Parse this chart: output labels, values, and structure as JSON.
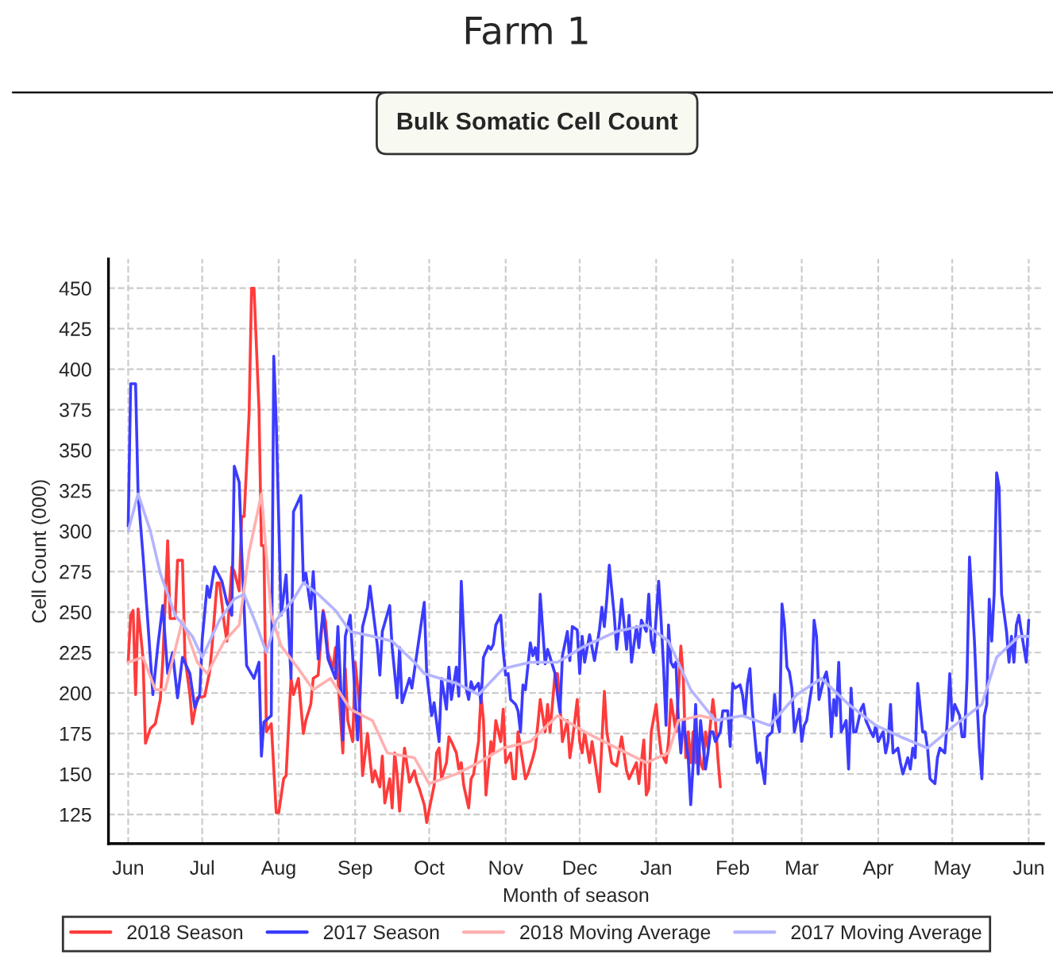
{
  "chart_data": {
    "type": "line",
    "title": "Farm 1",
    "subtitle": "Bulk Somatic Cell Count",
    "xlabel": "Month of season",
    "ylabel": "Cell Count (000)",
    "xlim": [
      "2017-05-24",
      "2018-06-07"
    ],
    "ylim": [
      107,
      468
    ],
    "xticks": [
      {
        "value": "2017-06-01",
        "label": "Jun"
      },
      {
        "value": "2017-07-01",
        "label": "Jul"
      },
      {
        "value": "2017-08-01",
        "label": "Aug"
      },
      {
        "value": "2017-09-01",
        "label": "Sep"
      },
      {
        "value": "2017-10-01",
        "label": "Oct"
      },
      {
        "value": "2017-11-01",
        "label": "Nov"
      },
      {
        "value": "2017-12-01",
        "label": "Dec"
      },
      {
        "value": "2018-01-01",
        "label": "Jan"
      },
      {
        "value": "2018-02-01",
        "label": "Feb"
      },
      {
        "value": "2018-03-01",
        "label": "Mar"
      },
      {
        "value": "2018-04-01",
        "label": "Apr"
      },
      {
        "value": "2018-05-01",
        "label": "May"
      },
      {
        "value": "2018-06-01",
        "label": "Jun"
      }
    ],
    "yticks": [
      125,
      150,
      175,
      200,
      225,
      250,
      275,
      300,
      325,
      350,
      375,
      400,
      425,
      450
    ],
    "grid": true,
    "legend": "bottom",
    "line_style": "solid",
    "series": [
      {
        "name": "2018 Season",
        "color": "#ff3b3b",
        "x": [
          "2017-06-01",
          "2017-06-02",
          "2017-06-03",
          "2017-06-04",
          "2017-06-05",
          "2017-06-07",
          "2017-06-08",
          "2017-06-10",
          "2017-06-12",
          "2017-06-14",
          "2017-06-15",
          "2017-06-17",
          "2017-06-18",
          "2017-06-20",
          "2017-06-21",
          "2017-06-23",
          "2017-06-24",
          "2017-06-26",
          "2017-06-27",
          "2017-06-29",
          "2017-07-02",
          "2017-07-04",
          "2017-07-05",
          "2017-07-07",
          "2017-07-08",
          "2017-07-10",
          "2017-07-11",
          "2017-07-13",
          "2017-07-14",
          "2017-07-16",
          "2017-07-17",
          "2017-07-18",
          "2017-07-20",
          "2017-07-21",
          "2017-07-22",
          "2017-07-24",
          "2017-07-25",
          "2017-07-26",
          "2017-07-27",
          "2017-07-29",
          "2017-07-31",
          "2017-08-01",
          "2017-08-03",
          "2017-08-04",
          "2017-08-06",
          "2017-08-07",
          "2017-08-09",
          "2017-08-11",
          "2017-08-12",
          "2017-08-14",
          "2017-08-15",
          "2017-08-17",
          "2017-08-19",
          "2017-08-20",
          "2017-08-21",
          "2017-08-23",
          "2017-08-24",
          "2017-08-25",
          "2017-08-27",
          "2017-08-28",
          "2017-08-29",
          "2017-08-31",
          "2017-09-01",
          "2017-09-03",
          "2017-09-04",
          "2017-09-06",
          "2017-09-07",
          "2017-09-08",
          "2017-09-09",
          "2017-09-11",
          "2017-09-12",
          "2017-09-13",
          "2017-09-15",
          "2017-09-16",
          "2017-09-17",
          "2017-09-18",
          "2017-09-19",
          "2017-09-21",
          "2017-09-23",
          "2017-09-25",
          "2017-09-26",
          "2017-09-27",
          "2017-09-29",
          "2017-09-30",
          "2017-10-01",
          "2017-10-03",
          "2017-10-04",
          "2017-10-05",
          "2017-10-06",
          "2017-10-08",
          "2017-10-09",
          "2017-10-10",
          "2017-10-12",
          "2017-10-13",
          "2017-10-14",
          "2017-10-15",
          "2017-10-17",
          "2017-10-18",
          "2017-10-19",
          "2017-10-21",
          "2017-10-22",
          "2017-10-23",
          "2017-10-24",
          "2017-10-26",
          "2017-10-27",
          "2017-10-28",
          "2017-10-30",
          "2017-10-31",
          "2017-11-01",
          "2017-11-03",
          "2017-11-04",
          "2017-11-05",
          "2017-11-06",
          "2017-11-08",
          "2017-11-09",
          "2017-11-10",
          "2017-11-12",
          "2017-11-13",
          "2017-11-14",
          "2017-11-15",
          "2017-11-17",
          "2017-11-18",
          "2017-11-19",
          "2017-11-21",
          "2017-11-22",
          "2017-11-23",
          "2017-11-24",
          "2017-11-26",
          "2017-11-27",
          "2017-11-28",
          "2017-11-30",
          "2017-12-01",
          "2017-12-02",
          "2017-12-03",
          "2017-12-05",
          "2017-12-06",
          "2017-12-07",
          "2017-12-09",
          "2017-12-10",
          "2017-12-11",
          "2017-12-12",
          "2017-12-14",
          "2017-12-16",
          "2017-12-18",
          "2017-12-20",
          "2017-12-21",
          "2017-12-24",
          "2017-12-25",
          "2017-12-27",
          "2017-12-28",
          "2017-12-29",
          "2017-12-30",
          "2018-01-01",
          "2018-01-02",
          "2018-01-03",
          "2018-01-05",
          "2018-01-06",
          "2018-01-07",
          "2018-01-09",
          "2018-01-10",
          "2018-01-11",
          "2018-01-12",
          "2018-01-13",
          "2018-01-14",
          "2018-01-15",
          "2018-01-16",
          "2018-01-17",
          "2018-01-18",
          "2018-01-19",
          "2018-01-20",
          "2018-01-21",
          "2018-01-22",
          "2018-01-24",
          "2018-01-25",
          "2018-01-26",
          "2018-01-27"
        ],
        "values": [
          219,
          248,
          251,
          199,
          252,
          222,
          169,
          178,
          181,
          196,
          219,
          294,
          246,
          246,
          282,
          282,
          222,
          199,
          181,
          197,
          198,
          213,
          229,
          268,
          268,
          242,
          232,
          278,
          275,
          263,
          309,
          309,
          372,
          450,
          450,
          376,
          291,
          291,
          176,
          181,
          126,
          126,
          147,
          149,
          209,
          199,
          209,
          175,
          183,
          193,
          209,
          211,
          251,
          244,
          225,
          215,
          228,
          209,
          163,
          215,
          183,
          170,
          219,
          188,
          149,
          175,
          159,
          145,
          152,
          142,
          161,
          132,
          147,
          129,
          163,
          150,
          127,
          166,
          145,
          152,
          145,
          141,
          131,
          120,
          128,
          143,
          163,
          166,
          147,
          157,
          173,
          170,
          163,
          153,
          157,
          143,
          129,
          147,
          150,
          170,
          199,
          183,
          137,
          170,
          163,
          183,
          170,
          190,
          157,
          163,
          147,
          147,
          176,
          157,
          147,
          150,
          160,
          166,
          180,
          196,
          176,
          193,
          176,
          212,
          212,
          193,
          170,
          183,
          160,
          170,
          196,
          170,
          163,
          176,
          157,
          170,
          160,
          139,
          170,
          201,
          176,
          157,
          155,
          173,
          152,
          147,
          157,
          144,
          171,
          137,
          141,
          176,
          193,
          176,
          163,
          157,
          170,
          196,
          176,
          199,
          229,
          209,
          160,
          176,
          157,
          176,
          157,
          170,
          157,
          153,
          176,
          166,
          196,
          183,
          160,
          142
        ]
      },
      {
        "name": "2017 Season",
        "color": "#3b3bff",
        "x": [
          "2017-06-01",
          "2017-06-02",
          "2017-06-04",
          "2017-06-05",
          "2017-06-07",
          "2017-06-09",
          "2017-06-11",
          "2017-06-13",
          "2017-06-15",
          "2017-06-17",
          "2017-06-19",
          "2017-06-21",
          "2017-06-23",
          "2017-06-26",
          "2017-06-28",
          "2017-06-30",
          "2017-07-01",
          "2017-07-03",
          "2017-07-04",
          "2017-07-06",
          "2017-07-09",
          "2017-07-11",
          "2017-07-13",
          "2017-07-14",
          "2017-07-16",
          "2017-07-17",
          "2017-07-19",
          "2017-07-22",
          "2017-07-24",
          "2017-07-25",
          "2017-07-26",
          "2017-07-29",
          "2017-07-30",
          "2017-07-31",
          "2017-08-02",
          "2017-08-04",
          "2017-08-06",
          "2017-08-07",
          "2017-08-10",
          "2017-08-11",
          "2017-08-12",
          "2017-08-14",
          "2017-08-15",
          "2017-08-17",
          "2017-08-19",
          "2017-08-21",
          "2017-08-24",
          "2017-08-25",
          "2017-08-26",
          "2017-08-27",
          "2017-08-28",
          "2017-08-30",
          "2017-09-02",
          "2017-09-03",
          "2017-09-04",
          "2017-09-06",
          "2017-09-07",
          "2017-09-10",
          "2017-09-11",
          "2017-09-12",
          "2017-09-15",
          "2017-09-16",
          "2017-09-18",
          "2017-09-19",
          "2017-09-20",
          "2017-09-23",
          "2017-09-24",
          "2017-09-29",
          "2017-09-30",
          "2017-10-02",
          "2017-10-03",
          "2017-10-05",
          "2017-10-06",
          "2017-10-08",
          "2017-10-09",
          "2017-10-10",
          "2017-10-12",
          "2017-10-13",
          "2017-10-14",
          "2017-10-16",
          "2017-10-17",
          "2017-10-18",
          "2017-10-19",
          "2017-10-21",
          "2017-10-22",
          "2017-10-23",
          "2017-10-25",
          "2017-10-26",
          "2017-10-27",
          "2017-10-28",
          "2017-10-30",
          "2017-10-31",
          "2017-11-01",
          "2017-11-02",
          "2017-11-03",
          "2017-11-05",
          "2017-11-06",
          "2017-11-07",
          "2017-11-08",
          "2017-11-09",
          "2017-11-11",
          "2017-11-12",
          "2017-11-13",
          "2017-11-14",
          "2017-11-15",
          "2017-11-17",
          "2017-11-18",
          "2017-11-19",
          "2017-11-21",
          "2017-11-22",
          "2017-11-23",
          "2017-11-24",
          "2017-11-26",
          "2017-11-27",
          "2017-11-28",
          "2017-11-30",
          "2017-12-01",
          "2017-12-02",
          "2017-12-03",
          "2017-12-05",
          "2017-12-06",
          "2017-12-07",
          "2017-12-09",
          "2017-12-10",
          "2017-12-11",
          "2017-12-12",
          "2017-12-13",
          "2017-12-15",
          "2017-12-16",
          "2017-12-17",
          "2017-12-18",
          "2017-12-20",
          "2017-12-21",
          "2017-12-22",
          "2017-12-24",
          "2017-12-25",
          "2017-12-26",
          "2017-12-28",
          "2017-12-29",
          "2017-12-30",
          "2017-12-31",
          "2018-01-02",
          "2018-01-03",
          "2018-01-04",
          "2018-01-05",
          "2018-01-06",
          "2018-01-07",
          "2018-01-08",
          "2018-01-09",
          "2018-01-10",
          "2018-01-11",
          "2018-01-12",
          "2018-01-14",
          "2018-01-15",
          "2018-01-16",
          "2018-01-17",
          "2018-01-18",
          "2018-01-19",
          "2018-01-21",
          "2018-01-22",
          "2018-01-23",
          "2018-01-24",
          "2018-01-25",
          "2018-01-27",
          "2018-01-28",
          "2018-01-30",
          "2018-01-31",
          "2018-02-01",
          "2018-02-02",
          "2018-02-04",
          "2018-02-05",
          "2018-02-06",
          "2018-02-07",
          "2018-02-08",
          "2018-02-09",
          "2018-02-11",
          "2018-02-12",
          "2018-02-13",
          "2018-02-14",
          "2018-02-15",
          "2018-02-17",
          "2018-02-18",
          "2018-02-19",
          "2018-02-20",
          "2018-02-21",
          "2018-02-22",
          "2018-02-23",
          "2018-02-24",
          "2018-02-25",
          "2018-02-26",
          "2018-02-28",
          "2018-03-01",
          "2018-03-02",
          "2018-03-03",
          "2018-03-05",
          "2018-03-06",
          "2018-03-07",
          "2018-03-08",
          "2018-03-10",
          "2018-03-11",
          "2018-03-12",
          "2018-03-13",
          "2018-03-14",
          "2018-03-15",
          "2018-03-16",
          "2018-03-17",
          "2018-03-19",
          "2018-03-20",
          "2018-03-21",
          "2018-03-22",
          "2018-03-23",
          "2018-03-25",
          "2018-03-26",
          "2018-03-27",
          "2018-03-29",
          "2018-03-30",
          "2018-03-31",
          "2018-04-01",
          "2018-04-03",
          "2018-04-04",
          "2018-04-05",
          "2018-04-06",
          "2018-04-07",
          "2018-04-09",
          "2018-04-10",
          "2018-04-11",
          "2018-04-13",
          "2018-04-14",
          "2018-04-15",
          "2018-04-16",
          "2018-04-17",
          "2018-04-19",
          "2018-04-20",
          "2018-04-21",
          "2018-04-22",
          "2018-04-24",
          "2018-04-25",
          "2018-04-26",
          "2018-04-28",
          "2018-04-29",
          "2018-04-30",
          "2018-05-01",
          "2018-05-02",
          "2018-05-04",
          "2018-05-05",
          "2018-05-06",
          "2018-05-07",
          "2018-05-08",
          "2018-05-10",
          "2018-05-11",
          "2018-05-12",
          "2018-05-13",
          "2018-05-14",
          "2018-05-15",
          "2018-05-16",
          "2018-05-17",
          "2018-05-18",
          "2018-05-19",
          "2018-05-20",
          "2018-05-21",
          "2018-05-23",
          "2018-05-24",
          "2018-05-25",
          "2018-05-26",
          "2018-05-27",
          "2018-05-28",
          "2018-05-29",
          "2018-05-31",
          "2018-06-01"
        ],
        "values": [
          303,
          391,
          391,
          323,
          285,
          243,
          199,
          229,
          254,
          212,
          225,
          197,
          222,
          212,
          191,
          199,
          233,
          266,
          259,
          278,
          269,
          256,
          248,
          340,
          330,
          287,
          217,
          209,
          219,
          161,
          182,
          186,
          408,
          367,
          248,
          273,
          209,
          312,
          322,
          269,
          274,
          252,
          275,
          221,
          250,
          221,
          209,
          241,
          209,
          171,
          235,
          248,
          171,
          199,
          241,
          253,
          266,
          229,
          211,
          238,
          254,
          228,
          197,
          228,
          194,
          209,
          203,
          256,
          212,
          186,
          194,
          170,
          209,
          190,
          216,
          196,
          216,
          198,
          269,
          203,
          196,
          207,
          202,
          206,
          194,
          222,
          229,
          227,
          230,
          242,
          248,
          226,
          211,
          212,
          196,
          193,
          189,
          176,
          205,
          202,
          231,
          223,
          228,
          218,
          261,
          218,
          227,
          222,
          212,
          199,
          188,
          223,
          238,
          220,
          241,
          239,
          212,
          235,
          219,
          236,
          228,
          220,
          239,
          253,
          241,
          258,
          279,
          248,
          227,
          241,
          258,
          227,
          248,
          219,
          241,
          228,
          245,
          238,
          261,
          232,
          225,
          269,
          245,
          216,
          180,
          242,
          219,
          216,
          219,
          183,
          163,
          183,
          160,
          131,
          157,
          193,
          150,
          183,
          153,
          163,
          176,
          176,
          170,
          176,
          189,
          189,
          167,
          206,
          203,
          205,
          199,
          186,
          206,
          215,
          189,
          157,
          163,
          153,
          144,
          173,
          176,
          199,
          183,
          176,
          255,
          242,
          216,
          213,
          203,
          176,
          190,
          170,
          180,
          183,
          203,
          245,
          235,
          196,
          209,
          213,
          203,
          173,
          196,
          186,
          219,
          176,
          183,
          153,
          203,
          176,
          176,
          190,
          193,
          183,
          176,
          173,
          180,
          170,
          176,
          163,
          170,
          193,
          163,
          166,
          157,
          150,
          160,
          153,
          166,
          160,
          206,
          176,
          176,
          166,
          147,
          144,
          160,
          166,
          163,
          183,
          212,
          183,
          193,
          186,
          173,
          173,
          209,
          284,
          232,
          196,
          166,
          147,
          186,
          193,
          258,
          232,
          261,
          336,
          327,
          261,
          238,
          219,
          235,
          219,
          242,
          248,
          238,
          219,
          245
        ]
      },
      {
        "name": "2018 Moving Average",
        "color": "#ffb0b0",
        "x": [
          "2017-06-01",
          "2017-06-07",
          "2017-06-12",
          "2017-06-16",
          "2017-06-23",
          "2017-06-29",
          "2017-07-03",
          "2017-07-10",
          "2017-07-16",
          "2017-07-20",
          "2017-07-25",
          "2017-07-29",
          "2017-08-02",
          "2017-08-09",
          "2017-08-15",
          "2017-08-22",
          "2017-08-30",
          "2017-09-08",
          "2017-09-14",
          "2017-09-25",
          "2017-10-01",
          "2017-10-12",
          "2017-10-21",
          "2017-10-31",
          "2017-11-11",
          "2017-11-22",
          "2017-12-03",
          "2017-12-16",
          "2017-12-28",
          "2018-01-06",
          "2018-01-10",
          "2018-01-19",
          "2018-01-27"
        ],
        "values": [
          219,
          222,
          202,
          202,
          245,
          219,
          212,
          232,
          242,
          287,
          323,
          248,
          229,
          215,
          202,
          209,
          190,
          183,
          163,
          160,
          144,
          150,
          157,
          166,
          170,
          186,
          176,
          166,
          157,
          163,
          183,
          186,
          183
        ]
      },
      {
        "name": "2017 Moving Average",
        "color": "#b4b4ff",
        "x": [
          "2017-06-01",
          "2017-06-05",
          "2017-06-10",
          "2017-06-14",
          "2017-06-20",
          "2017-06-27",
          "2017-07-01",
          "2017-07-08",
          "2017-07-14",
          "2017-07-18",
          "2017-07-23",
          "2017-07-27",
          "2017-07-31",
          "2017-08-07",
          "2017-08-11",
          "2017-08-17",
          "2017-08-24",
          "2017-08-30",
          "2017-09-08",
          "2017-09-16",
          "2017-09-25",
          "2017-09-29",
          "2017-10-12",
          "2017-10-21",
          "2017-10-31",
          "2017-11-11",
          "2017-11-22",
          "2017-12-03",
          "2017-12-16",
          "2017-12-28",
          "2018-01-06",
          "2018-01-15",
          "2018-01-25",
          "2018-02-05",
          "2018-02-16",
          "2018-02-27",
          "2018-03-09",
          "2018-03-20",
          "2018-03-31",
          "2018-04-10",
          "2018-04-21",
          "2018-05-02",
          "2018-05-13",
          "2018-05-19",
          "2018-05-28",
          "2018-06-01"
        ],
        "values": [
          300,
          323,
          300,
          274,
          248,
          235,
          222,
          245,
          258,
          261,
          242,
          225,
          245,
          258,
          268,
          261,
          251,
          238,
          235,
          232,
          219,
          212,
          206,
          199,
          215,
          219,
          219,
          229,
          238,
          242,
          232,
          202,
          183,
          186,
          180,
          199,
          209,
          193,
          180,
          173,
          166,
          180,
          193,
          222,
          235,
          235
        ]
      }
    ]
  }
}
